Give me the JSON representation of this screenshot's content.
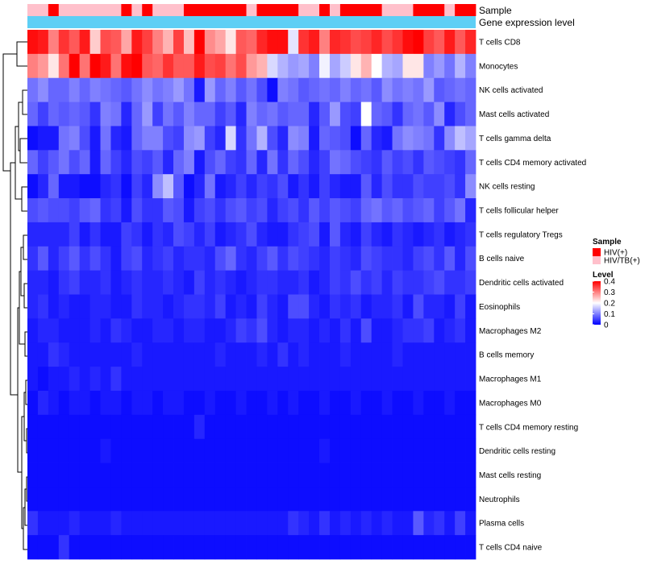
{
  "chart_data": {
    "type": "heatmap",
    "title": "",
    "annotation_tracks": [
      {
        "name": "Sample",
        "label": "Sample"
      },
      {
        "name": "Gene expression level",
        "label": "Gene expression level",
        "color": "#5ECFF5"
      }
    ],
    "sample_groups": [
      "HIV/TB(+)",
      "HIV/TB(+)",
      "HIV(+)",
      "HIV/TB(+)",
      "HIV/TB(+)",
      "HIV/TB(+)",
      "HIV/TB(+)",
      "HIV/TB(+)",
      "HIV/TB(+)",
      "HIV(+)",
      "HIV/TB(+)",
      "HIV(+)",
      "HIV/TB(+)",
      "HIV/TB(+)",
      "HIV/TB(+)",
      "HIV(+)",
      "HIV(+)",
      "HIV(+)",
      "HIV(+)",
      "HIV(+)",
      "HIV(+)",
      "HIV/TB(+)",
      "HIV(+)",
      "HIV(+)",
      "HIV(+)",
      "HIV(+)",
      "HIV/TB(+)",
      "HIV/TB(+)",
      "HIV(+)",
      "HIV/TB(+)",
      "HIV(+)",
      "HIV(+)",
      "HIV(+)",
      "HIV(+)",
      "HIV/TB(+)",
      "HIV/TB(+)",
      "HIV/TB(+)",
      "HIV(+)",
      "HIV(+)",
      "HIV(+)",
      "HIV/TB(+)",
      "HIV(+)",
      "HIV(+)"
    ],
    "rows": [
      "T cells CD8",
      "Monocytes",
      "NK cells activated",
      "Mast cells activated",
      "T cells gamma delta",
      "T cells CD4 memory activated",
      "NK cells resting",
      "T cells follicular helper",
      "T cells regulatory  Tregs",
      "B cells naive",
      "Dendritic cells activated",
      "Eosinophils",
      "Macrophages M2",
      "B cells memory",
      "Macrophages M1",
      "Macrophages M0",
      "T cells CD4 memory resting",
      "Dendritic cells resting",
      "Mast cells resting",
      "Neutrophils",
      "Plasma cells",
      "T cells CD4 naive"
    ],
    "values": [
      [
        0.39,
        0.38,
        0.3,
        0.36,
        0.33,
        0.38,
        0.24,
        0.34,
        0.33,
        0.27,
        0.38,
        0.35,
        0.3,
        0.26,
        0.35,
        0.25,
        0.4,
        0.29,
        0.27,
        0.22,
        0.33,
        0.32,
        0.37,
        0.39,
        0.39,
        0.18,
        0.36,
        0.38,
        0.3,
        0.37,
        0.36,
        0.34,
        0.35,
        0.37,
        0.34,
        0.36,
        0.39,
        0.4,
        0.35,
        0.33,
        0.38,
        0.33,
        0.37
      ],
      [
        0.3,
        0.28,
        0.22,
        0.31,
        0.4,
        0.31,
        0.41,
        0.38,
        0.31,
        0.39,
        0.41,
        0.33,
        0.32,
        0.36,
        0.33,
        0.33,
        0.38,
        0.34,
        0.35,
        0.31,
        0.34,
        0.28,
        0.26,
        0.17,
        0.14,
        0.12,
        0.13,
        0.1,
        0.19,
        0.13,
        0.16,
        0.22,
        0.26,
        0.2,
        0.14,
        0.13,
        0.22,
        0.22,
        0.1,
        0.12,
        0.09,
        0.14,
        0.1
      ],
      [
        0.09,
        0.11,
        0.08,
        0.08,
        0.1,
        0.08,
        0.1,
        0.09,
        0.08,
        0.07,
        0.09,
        0.11,
        0.09,
        0.1,
        0.12,
        0.09,
        0.02,
        0.12,
        0.08,
        0.1,
        0.07,
        0.09,
        0.06,
        0.01,
        0.1,
        0.09,
        0.07,
        0.08,
        0.09,
        0.08,
        0.1,
        0.08,
        0.09,
        0.07,
        0.11,
        0.09,
        0.1,
        0.09,
        0.12,
        0.07,
        0.08,
        0.09,
        0.08
      ],
      [
        0.08,
        0.05,
        0.08,
        0.07,
        0.08,
        0.07,
        0.04,
        0.1,
        0.09,
        0.03,
        0.08,
        0.12,
        0.05,
        0.09,
        0.07,
        0.1,
        0.08,
        0.08,
        0.05,
        0.07,
        0.03,
        0.1,
        0.08,
        0.09,
        0.07,
        0.08,
        0.08,
        0.03,
        0.07,
        0.12,
        0.06,
        0.05,
        0.2,
        0.08,
        0.07,
        0.04,
        0.08,
        0.09,
        0.07,
        0.11,
        0.03,
        0.06,
        0.08
      ],
      [
        0.01,
        0.02,
        0.02,
        0.09,
        0.1,
        0.06,
        0.02,
        0.09,
        0.03,
        0.02,
        0.08,
        0.1,
        0.1,
        0.06,
        0.05,
        0.11,
        0.12,
        0.05,
        0.03,
        0.17,
        0.04,
        0.09,
        0.14,
        0.06,
        0.03,
        0.11,
        0.1,
        0.02,
        0.08,
        0.07,
        0.06,
        0.01,
        0.08,
        0.03,
        0.02,
        0.09,
        0.11,
        0.1,
        0.09,
        0.04,
        0.11,
        0.15,
        0.13
      ],
      [
        0.08,
        0.05,
        0.07,
        0.09,
        0.06,
        0.08,
        0.02,
        0.08,
        0.05,
        0.03,
        0.06,
        0.05,
        0.07,
        0.03,
        0.08,
        0.1,
        0.02,
        0.06,
        0.08,
        0.05,
        0.04,
        0.08,
        0.03,
        0.09,
        0.04,
        0.08,
        0.06,
        0.03,
        0.05,
        0.09,
        0.08,
        0.06,
        0.05,
        0.04,
        0.07,
        0.05,
        0.06,
        0.04,
        0.07,
        0.06,
        0.05,
        0.04,
        0.08
      ],
      [
        0.01,
        0.03,
        0.08,
        0.02,
        0.02,
        0.01,
        0.01,
        0.03,
        0.04,
        0.01,
        0.05,
        0.03,
        0.11,
        0.15,
        0.07,
        0.01,
        0.03,
        0.09,
        0.02,
        0.03,
        0.05,
        0.03,
        0.05,
        0.04,
        0.06,
        0.02,
        0.04,
        0.02,
        0.05,
        0.03,
        0.02,
        0.02,
        0.07,
        0.03,
        0.06,
        0.04,
        0.04,
        0.06,
        0.05,
        0.05,
        0.06,
        0.04,
        0.11
      ],
      [
        0.06,
        0.07,
        0.06,
        0.06,
        0.05,
        0.07,
        0.08,
        0.04,
        0.05,
        0.02,
        0.06,
        0.04,
        0.04,
        0.07,
        0.06,
        0.02,
        0.05,
        0.06,
        0.04,
        0.06,
        0.07,
        0.05,
        0.06,
        0.03,
        0.05,
        0.06,
        0.04,
        0.07,
        0.05,
        0.07,
        0.06,
        0.05,
        0.08,
        0.09,
        0.07,
        0.08,
        0.06,
        0.07,
        0.08,
        0.05,
        0.07,
        0.09,
        0.03
      ],
      [
        0.03,
        0.03,
        0.03,
        0.03,
        0.05,
        0.02,
        0.04,
        0.02,
        0.02,
        0.05,
        0.04,
        0.02,
        0.04,
        0.03,
        0.06,
        0.05,
        0.03,
        0.05,
        0.02,
        0.03,
        0.04,
        0.06,
        0.03,
        0.02,
        0.02,
        0.04,
        0.05,
        0.06,
        0.02,
        0.07,
        0.03,
        0.02,
        0.05,
        0.03,
        0.02,
        0.04,
        0.03,
        0.02,
        0.03,
        0.04,
        0.02,
        0.03,
        0.04
      ],
      [
        0.04,
        0.07,
        0.03,
        0.05,
        0.07,
        0.04,
        0.06,
        0.04,
        0.02,
        0.05,
        0.06,
        0.03,
        0.04,
        0.05,
        0.03,
        0.04,
        0.04,
        0.03,
        0.06,
        0.08,
        0.04,
        0.03,
        0.05,
        0.07,
        0.04,
        0.06,
        0.05,
        0.04,
        0.03,
        0.05,
        0.04,
        0.03,
        0.06,
        0.05,
        0.04,
        0.04,
        0.03,
        0.05,
        0.06,
        0.04,
        0.07,
        0.03,
        0.06
      ],
      [
        0.03,
        0.03,
        0.02,
        0.04,
        0.05,
        0.03,
        0.03,
        0.04,
        0.02,
        0.03,
        0.04,
        0.03,
        0.03,
        0.04,
        0.03,
        0.02,
        0.05,
        0.03,
        0.04,
        0.03,
        0.02,
        0.03,
        0.04,
        0.04,
        0.03,
        0.03,
        0.04,
        0.02,
        0.03,
        0.05,
        0.04,
        0.06,
        0.04,
        0.05,
        0.03,
        0.05,
        0.04,
        0.04,
        0.05,
        0.06,
        0.04,
        0.04,
        0.05
      ],
      [
        0.03,
        0.04,
        0.02,
        0.03,
        0.02,
        0.02,
        0.03,
        0.03,
        0.02,
        0.02,
        0.04,
        0.03,
        0.03,
        0.02,
        0.03,
        0.04,
        0.04,
        0.03,
        0.05,
        0.02,
        0.03,
        0.02,
        0.05,
        0.03,
        0.02,
        0.06,
        0.06,
        0.03,
        0.02,
        0.04,
        0.03,
        0.04,
        0.02,
        0.03,
        0.03,
        0.04,
        0.02,
        0.06,
        0.03,
        0.03,
        0.02,
        0.05,
        0.02
      ],
      [
        0.02,
        0.03,
        0.03,
        0.02,
        0.02,
        0.02,
        0.03,
        0.02,
        0.04,
        0.03,
        0.02,
        0.02,
        0.03,
        0.03,
        0.02,
        0.03,
        0.03,
        0.02,
        0.02,
        0.03,
        0.05,
        0.04,
        0.06,
        0.03,
        0.02,
        0.03,
        0.03,
        0.02,
        0.03,
        0.02,
        0.04,
        0.02,
        0.06,
        0.02,
        0.02,
        0.03,
        0.04,
        0.04,
        0.05,
        0.02,
        0.03,
        0.04,
        0.02
      ],
      [
        0.02,
        0.02,
        0.04,
        0.03,
        0.02,
        0.02,
        0.02,
        0.02,
        0.02,
        0.02,
        0.03,
        0.02,
        0.02,
        0.02,
        0.02,
        0.02,
        0.02,
        0.02,
        0.03,
        0.02,
        0.02,
        0.02,
        0.03,
        0.02,
        0.04,
        0.02,
        0.03,
        0.02,
        0.02,
        0.02,
        0.03,
        0.02,
        0.02,
        0.02,
        0.02,
        0.03,
        0.02,
        0.02,
        0.02,
        0.02,
        0.02,
        0.02,
        0.02
      ],
      [
        0.02,
        0.01,
        0.02,
        0.02,
        0.03,
        0.02,
        0.03,
        0.02,
        0.04,
        0.02,
        0.02,
        0.02,
        0.02,
        0.02,
        0.02,
        0.02,
        0.02,
        0.02,
        0.02,
        0.02,
        0.02,
        0.02,
        0.02,
        0.02,
        0.02,
        0.02,
        0.02,
        0.02,
        0.02,
        0.02,
        0.02,
        0.02,
        0.02,
        0.02,
        0.02,
        0.02,
        0.02,
        0.02,
        0.02,
        0.02,
        0.02,
        0.02,
        0.02
      ],
      [
        0.01,
        0.03,
        0.02,
        0.01,
        0.02,
        0.02,
        0.01,
        0.02,
        0.02,
        0.01,
        0.02,
        0.02,
        0.01,
        0.02,
        0.02,
        0.01,
        0.01,
        0.02,
        0.01,
        0.01,
        0.02,
        0.01,
        0.01,
        0.02,
        0.01,
        0.02,
        0.01,
        0.01,
        0.02,
        0.01,
        0.01,
        0.02,
        0.01,
        0.01,
        0.02,
        0.01,
        0.01,
        0.02,
        0.01,
        0.01,
        0.02,
        0.01,
        0.01
      ],
      [
        0.01,
        0.01,
        0.01,
        0.01,
        0.01,
        0.01,
        0.01,
        0.01,
        0.01,
        0.01,
        0.01,
        0.01,
        0.01,
        0.01,
        0.01,
        0.01,
        0.03,
        0.01,
        0.01,
        0.01,
        0.01,
        0.01,
        0.01,
        0.01,
        0.01,
        0.01,
        0.01,
        0.01,
        0.01,
        0.01,
        0.01,
        0.01,
        0.01,
        0.01,
        0.01,
        0.01,
        0.01,
        0.01,
        0.01,
        0.01,
        0.01,
        0.01,
        0.01
      ],
      [
        0.01,
        0.01,
        0.01,
        0.01,
        0.01,
        0.01,
        0.01,
        0.02,
        0.01,
        0.01,
        0.01,
        0.01,
        0.01,
        0.01,
        0.01,
        0.01,
        0.01,
        0.01,
        0.01,
        0.01,
        0.01,
        0.01,
        0.01,
        0.01,
        0.01,
        0.01,
        0.01,
        0.01,
        0.02,
        0.01,
        0.01,
        0.01,
        0.01,
        0.01,
        0.01,
        0.01,
        0.01,
        0.01,
        0.01,
        0.01,
        0.01,
        0.01,
        0.01
      ],
      [
        0.01,
        0.01,
        0.01,
        0.01,
        0.01,
        0.01,
        0.01,
        0.01,
        0.01,
        0.01,
        0.01,
        0.01,
        0.01,
        0.01,
        0.01,
        0.01,
        0.01,
        0.01,
        0.01,
        0.01,
        0.01,
        0.01,
        0.01,
        0.01,
        0.01,
        0.01,
        0.01,
        0.01,
        0.01,
        0.01,
        0.01,
        0.01,
        0.01,
        0.01,
        0.01,
        0.01,
        0.01,
        0.01,
        0.01,
        0.01,
        0.01,
        0.01,
        0.01
      ],
      [
        0.01,
        0.01,
        0.01,
        0.01,
        0.01,
        0.01,
        0.01,
        0.01,
        0.01,
        0.01,
        0.01,
        0.01,
        0.01,
        0.01,
        0.01,
        0.01,
        0.01,
        0.01,
        0.01,
        0.01,
        0.01,
        0.01,
        0.01,
        0.01,
        0.01,
        0.01,
        0.01,
        0.01,
        0.01,
        0.01,
        0.01,
        0.01,
        0.01,
        0.01,
        0.01,
        0.01,
        0.01,
        0.01,
        0.01,
        0.01,
        0.01,
        0.01,
        0.01
      ],
      [
        0.04,
        0.02,
        0.02,
        0.02,
        0.03,
        0.02,
        0.02,
        0.02,
        0.03,
        0.02,
        0.02,
        0.02,
        0.02,
        0.02,
        0.02,
        0.02,
        0.02,
        0.02,
        0.02,
        0.02,
        0.02,
        0.02,
        0.02,
        0.02,
        0.02,
        0.04,
        0.03,
        0.02,
        0.04,
        0.02,
        0.03,
        0.02,
        0.03,
        0.02,
        0.03,
        0.02,
        0.02,
        0.07,
        0.03,
        0.04,
        0.02,
        0.05,
        0.02
      ],
      [
        0.01,
        0.01,
        0.01,
        0.04,
        0.01,
        0.01,
        0.01,
        0.01,
        0.01,
        0.01,
        0.01,
        0.01,
        0.01,
        0.01,
        0.01,
        0.01,
        0.01,
        0.01,
        0.01,
        0.01,
        0.01,
        0.01,
        0.01,
        0.01,
        0.01,
        0.01,
        0.01,
        0.01,
        0.01,
        0.01,
        0.01,
        0.01,
        0.01,
        0.01,
        0.01,
        0.01,
        0.01,
        0.01,
        0.01,
        0.01,
        0.01,
        0.01,
        0.01
      ]
    ],
    "color_scale": {
      "min": 0,
      "max": 0.4,
      "stops": [
        {
          "value": 0,
          "color": "#0000FF"
        },
        {
          "value": 0.2,
          "color": "#FFFFFF"
        },
        {
          "value": 0.4,
          "color": "#FF0000"
        }
      ]
    },
    "legends": {
      "sample": {
        "title": "Sample",
        "entries": [
          {
            "label": "HIV(+)",
            "color": "#FF0000"
          },
          {
            "label": "HIV/TB(+)",
            "color": "#FFC0CB"
          }
        ]
      },
      "level": {
        "title": "Level",
        "ticks": [
          {
            "value": 0.4,
            "label": "0.4"
          },
          {
            "value": 0.3,
            "label": "0.3"
          },
          {
            "value": 0.2,
            "label": "0.2"
          },
          {
            "value": 0.1,
            "label": "0.1"
          },
          {
            "value": 0,
            "label": "0"
          }
        ]
      }
    },
    "dendrogram": "row-clustering"
  }
}
